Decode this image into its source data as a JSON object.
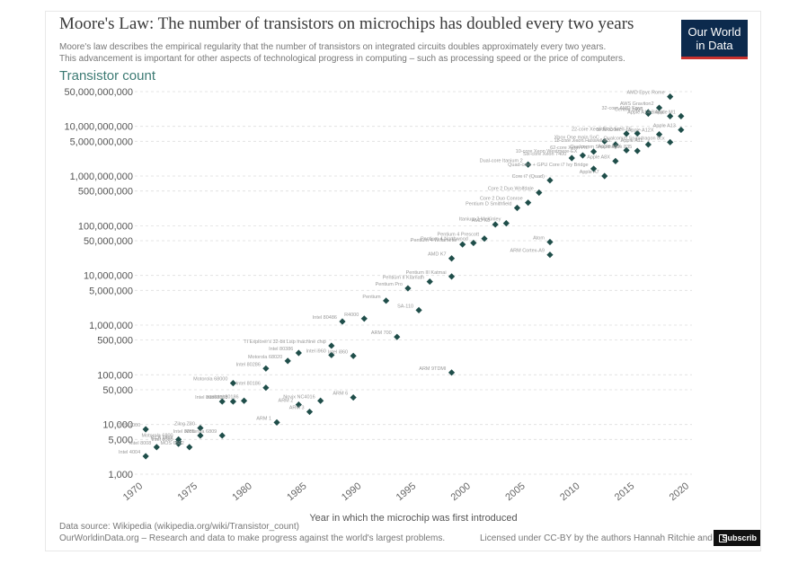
{
  "title": "Moore's Law: The number of transistors on microchips has doubled every two years",
  "subtitle_line1": "Moore's law describes the empirical regularity that the number of transistors on integrated circuits doubles approximately every two years.",
  "subtitle_line2": "This advancement is important for other aspects of technological progress in computing – such as processing speed or the price of computers.",
  "logo_line1": "Our World",
  "logo_line2": "in Data",
  "source_line": "Data source: Wikipedia (wikipedia.org/wiki/Transistor_count)",
  "owid_line": "OurWorldinData.org – Research and data to make progress against the world's largest problems.",
  "license": "Licensed under CC-BY by the authors Hannah Ritchie and M",
  "subscribe": "Subscrib",
  "colors": {
    "point": "#1f4e4a",
    "label": "#999999",
    "axis_title": "#3c7a73",
    "grid": "#dddddd"
  },
  "chart_data": {
    "type": "scatter",
    "title": "Transistor count",
    "xlabel": "Year in which the microchip was first introduced",
    "ylabel": "Transistor count",
    "yscale": "log",
    "xlim": [
      1970,
      2021
    ],
    "ylim": [
      1000,
      50000000000
    ],
    "x_ticks": [
      1970,
      1975,
      1980,
      1985,
      1990,
      1995,
      2000,
      2005,
      2010,
      2015,
      2020
    ],
    "y_ticks": [
      {
        "value": 1000,
        "label": "1,000"
      },
      {
        "value": 5000,
        "label": "5,000"
      },
      {
        "value": 10000,
        "label": "10,000"
      },
      {
        "value": 50000,
        "label": "50,000"
      },
      {
        "value": 100000,
        "label": "100,000"
      },
      {
        "value": 500000,
        "label": "500,000"
      },
      {
        "value": 1000000,
        "label": "1,000,000"
      },
      {
        "value": 5000000,
        "label": "5,000,000"
      },
      {
        "value": 10000000,
        "label": "10,000,000"
      },
      {
        "value": 50000000,
        "label": "50,000,000"
      },
      {
        "value": 100000000,
        "label": "100,000,000"
      },
      {
        "value": 500000000,
        "label": "500,000,000"
      },
      {
        "value": 1000000000,
        "label": "1,000,000,000"
      },
      {
        "value": 5000000000,
        "label": "5,000,000,000"
      },
      {
        "value": 10000000000,
        "label": "10,000,000,000"
      },
      {
        "value": 50000000000,
        "label": "50,000,000,000"
      }
    ],
    "points": [
      {
        "x": 1971,
        "y": 2300,
        "label": "Intel 4004"
      },
      {
        "x": 1972,
        "y": 3500,
        "label": "Intel 8008"
      },
      {
        "x": 1971,
        "y": 8000,
        "label": "TMS 1000"
      },
      {
        "x": 1974,
        "y": 4500,
        "label": "RCA 1802"
      },
      {
        "x": 1974,
        "y": 4100,
        "label": "Intel 8080"
      },
      {
        "x": 1974,
        "y": 5000,
        "label": "Motorola 6800"
      },
      {
        "x": 1975,
        "y": 3500,
        "label": "MOS 6502"
      },
      {
        "x": 1976,
        "y": 6000,
        "label": "Intel 8085"
      },
      {
        "x": 1976,
        "y": 8500,
        "label": "Zilog Z80"
      },
      {
        "x": 1978,
        "y": 6000,
        "label": "Motorola 6809"
      },
      {
        "x": 1979,
        "y": 29000,
        "label": "Intel 8088"
      },
      {
        "x": 1978,
        "y": 29000,
        "label": "Intel 8086"
      },
      {
        "x": 1979,
        "y": 68000,
        "label": "Motorola 68000"
      },
      {
        "x": 1980,
        "y": 30000,
        "label": "Intel 80186"
      },
      {
        "x": 1982,
        "y": 134000,
        "label": "Intel 80286"
      },
      {
        "x": 1982,
        "y": 55000,
        "label": "Intel 80186"
      },
      {
        "x": 1983,
        "y": 11000,
        "label": "ARM 1"
      },
      {
        "x": 1984,
        "y": 190000,
        "label": "Motorola 68020"
      },
      {
        "x": 1985,
        "y": 275000,
        "label": "Intel 80386"
      },
      {
        "x": 1985,
        "y": 25000,
        "label": "ARM 2"
      },
      {
        "x": 1986,
        "y": 18000,
        "label": "ARM 3"
      },
      {
        "x": 1987,
        "y": 30000,
        "label": "Novix NC4016"
      },
      {
        "x": 1988,
        "y": 250000,
        "label": "Intel i960"
      },
      {
        "x": 1989,
        "y": 1180000,
        "label": "Intel 80486"
      },
      {
        "x": 1988,
        "y": 385000,
        "label": "TI Explorer's 32-bit Lisp machine chip"
      },
      {
        "x": 1990,
        "y": 240000,
        "label": "Intel i860"
      },
      {
        "x": 1991,
        "y": 1350000,
        "label": "R4000"
      },
      {
        "x": 1990,
        "y": 35000,
        "label": "ARM 6"
      },
      {
        "x": 1993,
        "y": 3100000,
        "label": "Pentium"
      },
      {
        "x": 1994,
        "y": 578000,
        "label": "ARM 700"
      },
      {
        "x": 1995,
        "y": 5500000,
        "label": "Pentium Pro"
      },
      {
        "x": 1996,
        "y": 2000000,
        "label": "SA-110"
      },
      {
        "x": 1997,
        "y": 7500000,
        "label": "Pentium II Klamath"
      },
      {
        "x": 1999,
        "y": 9500000,
        "label": "Pentium III Katmai"
      },
      {
        "x": 1999,
        "y": 22000000,
        "label": "AMD K7"
      },
      {
        "x": 2000,
        "y": 42000000,
        "label": "Pentium 4 Willamette"
      },
      {
        "x": 2001,
        "y": 45000000,
        "label": "Pentium 4 Northwood"
      },
      {
        "x": 2002,
        "y": 55000000,
        "label": "Pentium 4 Prescott"
      },
      {
        "x": 2003,
        "y": 105900000,
        "label": "AMD K8"
      },
      {
        "x": 2004,
        "y": 112000000,
        "label": "Itanium 2 McKinley"
      },
      {
        "x": 2005,
        "y": 228000000,
        "label": "Pentium D Smithfield"
      },
      {
        "x": 2006,
        "y": 291000000,
        "label": "Core 2 Duo Conroe"
      },
      {
        "x": 2006,
        "y": 1700000000,
        "label": "Dual-core Itanium 2"
      },
      {
        "x": 2007,
        "y": 463000000,
        "label": "Core 2 Duo Wolfdale"
      },
      {
        "x": 2008,
        "y": 820000000,
        "label": "Core i7 (Quad)"
      },
      {
        "x": 2008,
        "y": 47000000,
        "label": "Atom"
      },
      {
        "x": 2010,
        "y": 2300000000,
        "label": "Six-core Xeon 7400"
      },
      {
        "x": 2011,
        "y": 2600000000,
        "label": "10-core Xeon Westmere-EX"
      },
      {
        "x": 2012,
        "y": 3100000000,
        "label": "62-core Xeon Phi"
      },
      {
        "x": 2013,
        "y": 5000000000,
        "label": "Xbox One main SoC"
      },
      {
        "x": 2014,
        "y": 4300000000,
        "label": "18-core Xeon Haswell-E5"
      },
      {
        "x": 2015,
        "y": 7100000000,
        "label": "SPARC M7"
      },
      {
        "x": 2016,
        "y": 7200000000,
        "label": "22-core Xeon Broadwell-E5"
      },
      {
        "x": 2017,
        "y": 19200000000,
        "label": "32-core AMD Epyc"
      },
      {
        "x": 2017,
        "y": 18000000000,
        "label": "Centriq 2400"
      },
      {
        "x": 2018,
        "y": 23600000000,
        "label": "AWS Graviton2"
      },
      {
        "x": 2019,
        "y": 39540000000,
        "label": "AMD Epyc Rome"
      },
      {
        "x": 2019,
        "y": 16000000000,
        "label": "Apple A14 Bionic"
      },
      {
        "x": 2020,
        "y": 16000000000,
        "label": "Apple M1"
      },
      {
        "x": 2020,
        "y": 8500000000,
        "label": "Apple A13"
      },
      {
        "x": 2014,
        "y": 2000000000,
        "label": "Apple A8X"
      },
      {
        "x": 2013,
        "y": 1000000000,
        "label": "Apple A7"
      },
      {
        "x": 2015,
        "y": 3300000000,
        "label": "Apple A9X"
      },
      {
        "x": 2017,
        "y": 4300000000,
        "label": "Apple A11"
      },
      {
        "x": 2018,
        "y": 6900000000,
        "label": "Apple A12X"
      },
      {
        "x": 2012,
        "y": 1400000000,
        "label": "Quad-core + GPU Core i7 Ivy Bridge"
      },
      {
        "x": 2016,
        "y": 3200000000,
        "label": "Qualcomm Snapdragon 835"
      },
      {
        "x": 2019,
        "y": 4800000000,
        "label": "Qualcomm Snapdragon 8cx"
      },
      {
        "x": 2008,
        "y": 26000000,
        "label": "ARM Cortex-A9"
      },
      {
        "x": 1999,
        "y": 111000,
        "label": "ARM 9TDMI"
      }
    ]
  }
}
